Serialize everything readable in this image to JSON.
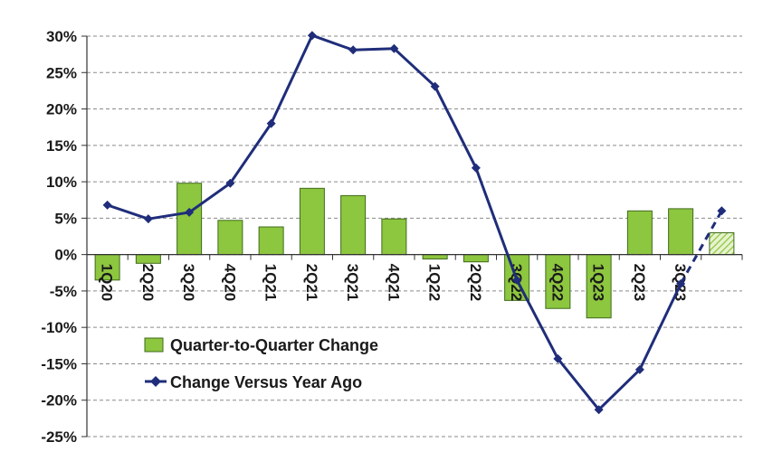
{
  "chart_data": {
    "type": "bar",
    "categories": [
      "1Q20",
      "2Q20",
      "3Q20",
      "4Q20",
      "1Q21",
      "2Q21",
      "3Q21",
      "4Q21",
      "1Q22",
      "2Q22",
      "3Q22",
      "4Q22",
      "1Q23",
      "2Q23",
      "3Q23",
      ""
    ],
    "ylim": [
      -25,
      30
    ],
    "yticks": [
      30,
      25,
      20,
      15,
      10,
      5,
      0,
      -5,
      -10,
      -15,
      -20,
      -25
    ],
    "ytick_labels": [
      "30%",
      "25%",
      "20%",
      "15%",
      "10%",
      "5%",
      "0%",
      "-5%",
      "-10%",
      "-15%",
      "-20%",
      "-25%"
    ],
    "grid": true,
    "legend_position": "lower-left",
    "series": [
      {
        "name": "Quarter-to-Quarter Change",
        "type": "bar",
        "color": "#8dc63f",
        "values": [
          -3.5,
          -1.2,
          9.8,
          4.7,
          3.8,
          9.1,
          8.1,
          4.9,
          -0.6,
          -1.0,
          -6.3,
          -7.4,
          -8.7,
          6.0,
          6.3,
          3.0
        ],
        "estimate_index": 15
      },
      {
        "name": "Change Versus Year Ago",
        "type": "line",
        "color": "#1f2d7a",
        "marker": "diamond",
        "values": [
          6.8,
          4.9,
          5.8,
          9.8,
          18.0,
          30.1,
          28.1,
          28.3,
          23.1,
          11.9,
          -3.5,
          -14.3,
          -21.3,
          -15.8,
          -4.0,
          6.0
        ],
        "dashed_from_index": 14
      }
    ]
  }
}
